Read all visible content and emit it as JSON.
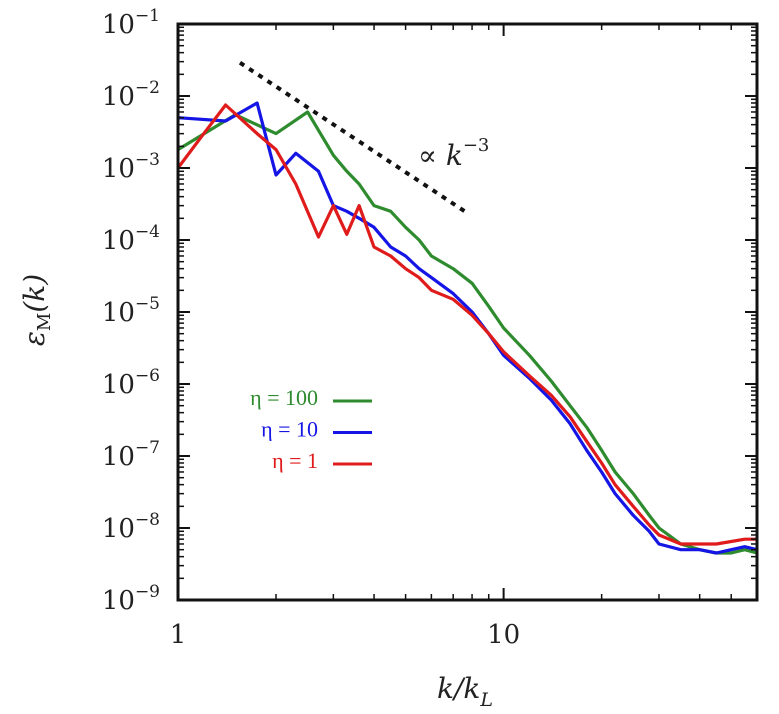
{
  "chart_data": {
    "type": "line",
    "scale": "log-log",
    "xlabel": "k/k",
    "xlabel_sub": "L",
    "ylabel": "ε",
    "ylabel_sub": "M",
    "ylabel_arg": "(k)",
    "xlim": [
      1,
      60
    ],
    "ylim": [
      1e-09,
      0.1
    ],
    "x_ticks": [
      {
        "value": 1,
        "label": "1"
      },
      {
        "value": 10,
        "label": "10"
      }
    ],
    "y_ticks": [
      {
        "value": 0.1,
        "base": "10",
        "exp": "−1"
      },
      {
        "value": 0.01,
        "base": "10",
        "exp": "−2"
      },
      {
        "value": 0.001,
        "base": "10",
        "exp": "−3"
      },
      {
        "value": 0.0001,
        "base": "10",
        "exp": "−4"
      },
      {
        "value": 1e-05,
        "base": "10",
        "exp": "−5"
      },
      {
        "value": 1e-06,
        "base": "10",
        "exp": "−6"
      },
      {
        "value": 1e-07,
        "base": "10",
        "exp": "−7"
      },
      {
        "value": 1e-08,
        "base": "10",
        "exp": "−8"
      },
      {
        "value": 1e-09,
        "base": "10",
        "exp": "−9"
      }
    ],
    "series": [
      {
        "name": "η = 100",
        "color": "#2e8b2e",
        "x": [
          1,
          1.5,
          2,
          2.5,
          3,
          3.3,
          3.6,
          4,
          4.5,
          5,
          5.5,
          6,
          7,
          8,
          9,
          10,
          12,
          14,
          16,
          18,
          20,
          22,
          25,
          28,
          30,
          35,
          40,
          45,
          50,
          55,
          60
        ],
        "y": [
          0.0018,
          0.0055,
          0.003,
          0.006,
          0.0015,
          0.0009,
          0.0006,
          0.0003,
          0.00025,
          0.00015,
          0.0001,
          6e-05,
          4e-05,
          2.5e-05,
          1.2e-05,
          6e-06,
          2.5e-06,
          1.1e-06,
          5e-07,
          2.5e-07,
          1.2e-07,
          6e-08,
          3e-08,
          1.5e-08,
          1e-08,
          6e-09,
          5e-09,
          4.5e-09,
          4.5e-09,
          5e-09,
          4.5e-09
        ]
      },
      {
        "name": "η = 10",
        "color": "#1515e6",
        "x": [
          1,
          1.4,
          1.75,
          2,
          2.3,
          2.7,
          3,
          3.3,
          3.6,
          4,
          4.5,
          5,
          5.5,
          6,
          7,
          8,
          9,
          10,
          12,
          14,
          16,
          18,
          20,
          22,
          25,
          28,
          30,
          35,
          40,
          45,
          50,
          55,
          60
        ],
        "y": [
          0.005,
          0.0045,
          0.008,
          0.0008,
          0.0016,
          0.0009,
          0.0003,
          0.00025,
          0.0002,
          0.00015,
          8e-05,
          6e-05,
          4e-05,
          3e-05,
          1.8e-05,
          1e-05,
          5e-06,
          2.5e-06,
          1.2e-06,
          6e-07,
          2.8e-07,
          1.2e-07,
          6e-08,
          3e-08,
          1.5e-08,
          9e-09,
          6e-09,
          5e-09,
          5e-09,
          4.5e-09,
          5e-09,
          5.5e-09,
          5e-09
        ]
      },
      {
        "name": "η = 1",
        "color": "#e01b1b",
        "x": [
          1,
          1.2,
          1.4,
          1.75,
          2,
          2.3,
          2.7,
          3,
          3.3,
          3.6,
          4,
          4.5,
          5,
          5.5,
          6,
          7,
          8,
          9,
          10,
          12,
          14,
          16,
          18,
          20,
          22,
          25,
          28,
          30,
          35,
          40,
          45,
          50,
          55,
          60
        ],
        "y": [
          0.001,
          0.003,
          0.0075,
          0.003,
          0.0018,
          0.0006,
          0.00011,
          0.0003,
          0.00012,
          0.0003,
          8e-05,
          6e-05,
          4e-05,
          3e-05,
          2e-05,
          1.5e-05,
          9e-06,
          5e-06,
          2.8e-06,
          1.3e-06,
          7e-07,
          3.5e-07,
          1.6e-07,
          8e-08,
          4e-08,
          2e-08,
          1.1e-08,
          8e-09,
          6e-09,
          6e-09,
          6e-09,
          6.5e-09,
          7e-09,
          7e-09
        ]
      }
    ],
    "reference_line": {
      "label": "∝ k",
      "exponent_label": "−3",
      "slope": -3,
      "x": [
        1.55,
        7.6
      ],
      "y": [
        0.029,
        0.00025
      ],
      "style": "dotted",
      "color": "#111111"
    },
    "legend": {
      "placement": "center-left",
      "entries": [
        {
          "label": "η = 100",
          "color": "#2e8b2e"
        },
        {
          "label": "η = 10",
          "color": "#1515e6"
        },
        {
          "label": "η = 1",
          "color": "#e01b1b"
        }
      ]
    }
  }
}
